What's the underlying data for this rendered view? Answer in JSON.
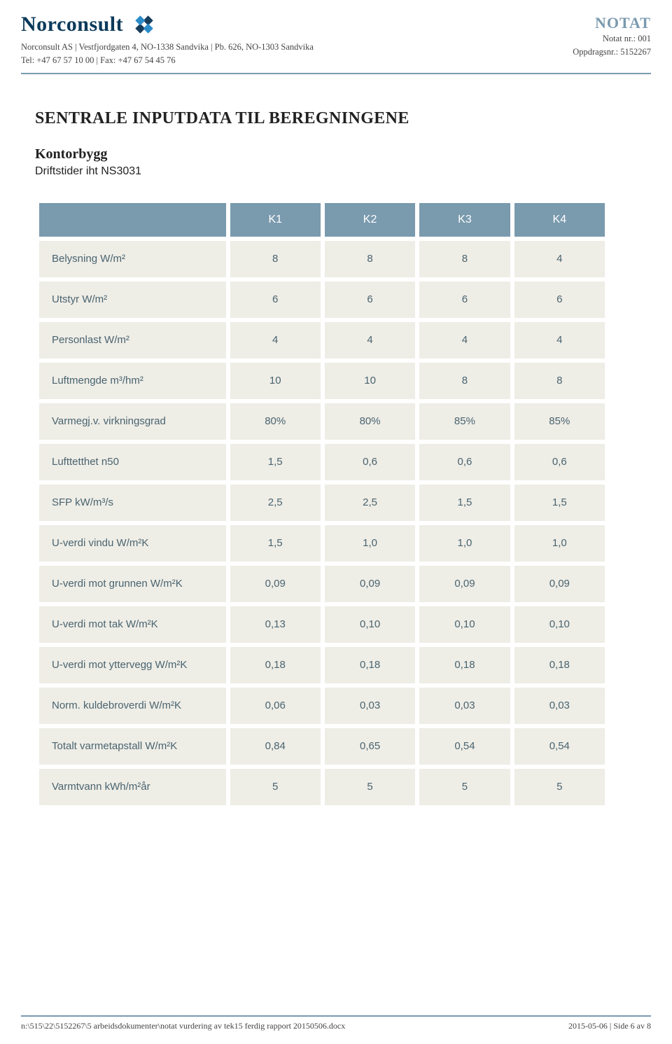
{
  "header": {
    "company_name": "Norconsult",
    "address_line": "Norconsult AS | Vestfjordgaten 4, NO-1338 Sandvika | Pb. 626, NO-1303 Sandvika",
    "contact_line": "Tel: +47 67 57 10 00 | Fax: +47 67 54 45 76",
    "notat": "NOTAT",
    "notat_nr": "Notat nr.: 001",
    "oppdragsnr": "Oppdragsnr.: 5152267",
    "logo_colors": {
      "dark": "#173d5a",
      "light": "#2a8bc9"
    }
  },
  "title": "SENTRALE INPUTDATA TIL BEREGNINGENE",
  "subtitle": "Kontorbygg",
  "subtitle2": "Driftstider iht NS3031",
  "table": {
    "header_bg": "#7a9aae",
    "header_fg": "#ffffff",
    "cell_bg": "#eeede6",
    "cell_fg": "#4a6470",
    "columns": [
      "K1",
      "K2",
      "K3",
      "K4"
    ],
    "rows": [
      {
        "label": "Belysning W/m²",
        "values": [
          "8",
          "8",
          "8",
          "4"
        ]
      },
      {
        "label": "Utstyr W/m²",
        "values": [
          "6",
          "6",
          "6",
          "6"
        ]
      },
      {
        "label": "Personlast W/m²",
        "values": [
          "4",
          "4",
          "4",
          "4"
        ]
      },
      {
        "label": "Luftmengde m³/hm²",
        "values": [
          "10",
          "10",
          "8",
          "8"
        ]
      },
      {
        "label": "Varmegj.v. virkningsgrad",
        "values": [
          "80%",
          "80%",
          "85%",
          "85%"
        ]
      },
      {
        "label": "Lufttetthet n50",
        "values": [
          "1,5",
          "0,6",
          "0,6",
          "0,6"
        ]
      },
      {
        "label": "SFP kW/m³/s",
        "values": [
          "2,5",
          "2,5",
          "1,5",
          "1,5"
        ]
      },
      {
        "label": "U-verdi vindu W/m²K",
        "values": [
          "1,5",
          "1,0",
          "1,0",
          "1,0"
        ]
      },
      {
        "label": "U-verdi mot grunnen W/m²K",
        "values": [
          "0,09",
          "0,09",
          "0,09",
          "0,09"
        ]
      },
      {
        "label": "U-verdi mot tak W/m²K",
        "values": [
          "0,13",
          "0,10",
          "0,10",
          "0,10"
        ]
      },
      {
        "label": "U-verdi mot yttervegg W/m²K",
        "values": [
          "0,18",
          "0,18",
          "0,18",
          "0,18"
        ]
      },
      {
        "label": "Norm. kuldebroverdi W/m²K",
        "values": [
          "0,06",
          "0,03",
          "0,03",
          "0,03"
        ]
      },
      {
        "label": "Totalt varmetapstall W/m²K",
        "values": [
          "0,84",
          "0,65",
          "0,54",
          "0,54"
        ]
      },
      {
        "label": "Varmtvann kWh/m²år",
        "values": [
          "5",
          "5",
          "5",
          "5"
        ]
      }
    ]
  },
  "footer": {
    "path": "n:\\515\\22\\5152267\\5 arbeidsdokumenter\\notat vurdering av tek15 ferdig rapport 20150506.docx",
    "page_info": "2015-05-06 | Side 6 av 8"
  }
}
